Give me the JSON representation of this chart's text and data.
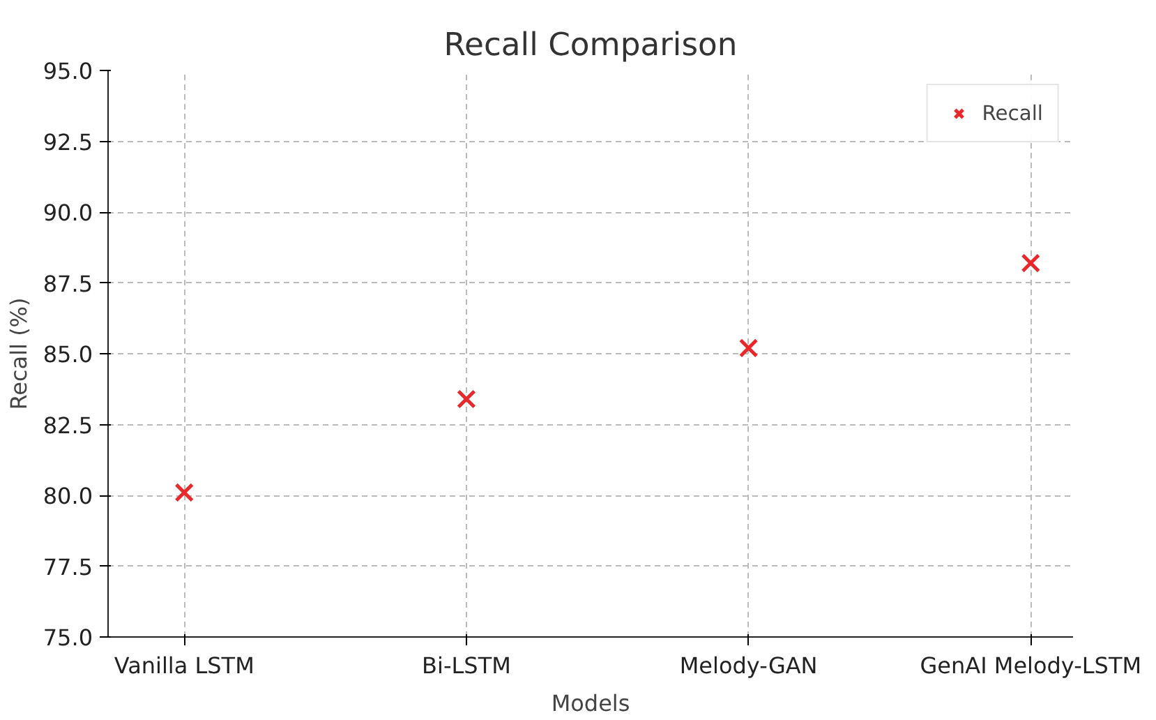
{
  "chart_data": {
    "type": "scatter",
    "title": "Recall Comparison",
    "xlabel": "Models",
    "ylabel": "Recall (%)",
    "categories": [
      "Vanilla LSTM",
      "Bi-LSTM",
      "Melody-GAN",
      "GenAI Melody-LSTM"
    ],
    "series": [
      {
        "name": "Recall",
        "color": "#e8282b",
        "values": [
          80.1,
          83.4,
          85.2,
          88.2
        ]
      }
    ],
    "ylim": [
      75.0,
      95.0
    ],
    "yticks": [
      {
        "value": 75,
        "label": "75.0"
      },
      {
        "value": 77.5,
        "label": "77.5"
      },
      {
        "value": 80,
        "label": "80.0"
      },
      {
        "value": 82.5,
        "label": "82.5"
      },
      {
        "value": 85,
        "label": "85.0"
      },
      {
        "value": 87.5,
        "label": "87.5"
      },
      {
        "value": 90,
        "label": "90.0"
      },
      {
        "value": 92.5,
        "label": "92.5"
      },
      {
        "value": 95,
        "label": "95.0"
      }
    ],
    "grid": true,
    "legend": "top right",
    "marker": "cross"
  }
}
